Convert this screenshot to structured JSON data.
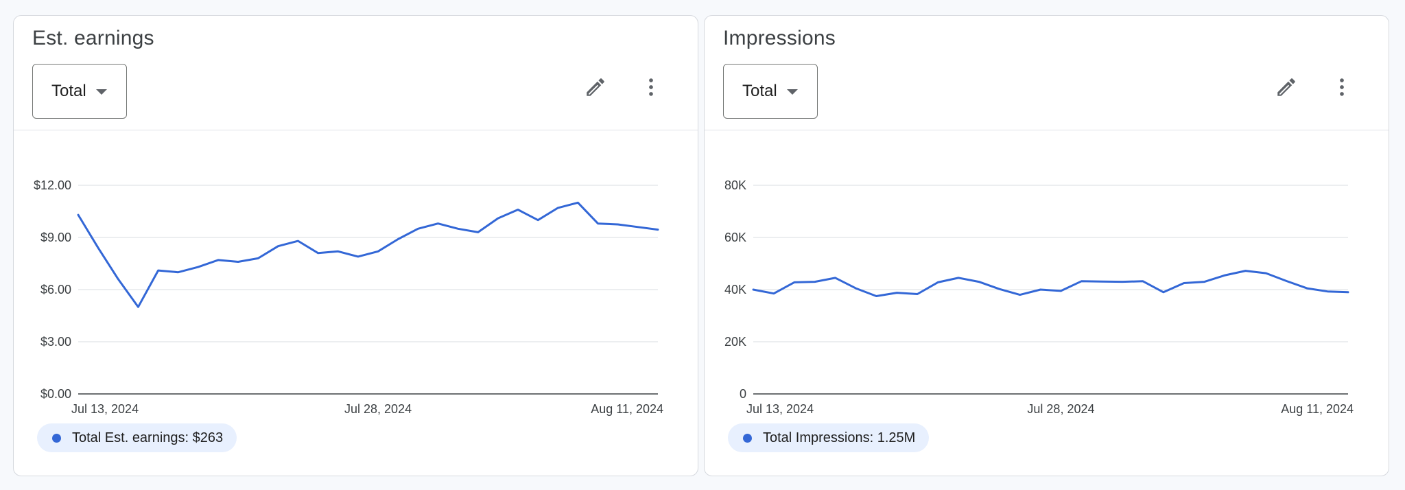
{
  "colors": {
    "series": "#3367d6",
    "grid": "#dadce0",
    "axis": "#3c4043"
  },
  "cards": [
    {
      "title": "Est. earnings",
      "dropdown_value": "Total",
      "edit_icon": "pencil-icon",
      "menu_icon": "more-vert-icon",
      "legend": {
        "label": "Total Est. earnings: $263"
      },
      "chart_data": {
        "type": "line",
        "title": "",
        "xlabel": "",
        "ylabel": "",
        "ylim": [
          0,
          12
        ],
        "yticks": [
          0,
          3,
          6,
          9,
          12
        ],
        "ytick_labels": [
          "$0.00",
          "$3.00",
          "$6.00",
          "$9.00",
          "$12.00"
        ],
        "x": [
          "Jul 13, 2024",
          "Jul 14, 2024",
          "Jul 15, 2024",
          "Jul 16, 2024",
          "Jul 17, 2024",
          "Jul 18, 2024",
          "Jul 19, 2024",
          "Jul 20, 2024",
          "Jul 21, 2024",
          "Jul 22, 2024",
          "Jul 23, 2024",
          "Jul 24, 2024",
          "Jul 25, 2024",
          "Jul 26, 2024",
          "Jul 27, 2024",
          "Jul 28, 2024",
          "Jul 29, 2024",
          "Jul 30, 2024",
          "Jul 31, 2024",
          "Aug 1, 2024",
          "Aug 2, 2024",
          "Aug 3, 2024",
          "Aug 4, 2024",
          "Aug 5, 2024",
          "Aug 6, 2024",
          "Aug 7, 2024",
          "Aug 8, 2024",
          "Aug 9, 2024",
          "Aug 10, 2024",
          "Aug 11, 2024"
        ],
        "xtick_labels": [
          {
            "index": 0,
            "label": "Jul 13, 2024"
          },
          {
            "index": 15,
            "label": "Jul 28, 2024"
          },
          {
            "index": 29,
            "label": "Aug 11, 2024"
          }
        ],
        "grid": true,
        "series": [
          {
            "values": [
              10.3,
              8.4,
              6.6,
              5.0,
              7.1,
              7.0,
              7.3,
              7.7,
              7.6,
              7.8,
              8.5,
              8.8,
              8.1,
              8.2,
              7.9,
              8.2,
              8.9,
              9.5,
              9.8,
              9.5,
              9.3,
              10.1,
              10.6,
              10.0,
              10.7,
              11.0,
              9.8,
              9.75,
              9.6,
              9.45
            ]
          }
        ]
      }
    },
    {
      "title": "Impressions",
      "dropdown_value": "Total",
      "edit_icon": "pencil-icon",
      "menu_icon": "more-vert-icon",
      "legend": {
        "label": "Total Impressions: 1.25M"
      },
      "chart_data": {
        "type": "line",
        "title": "",
        "xlabel": "",
        "ylabel": "",
        "ylim": [
          0,
          80000
        ],
        "yticks": [
          0,
          20000,
          40000,
          60000,
          80000
        ],
        "ytick_labels": [
          "0",
          "20K",
          "40K",
          "60K",
          "80K"
        ],
        "x": [
          "Jul 13, 2024",
          "Jul 14, 2024",
          "Jul 15, 2024",
          "Jul 16, 2024",
          "Jul 17, 2024",
          "Jul 18, 2024",
          "Jul 19, 2024",
          "Jul 20, 2024",
          "Jul 21, 2024",
          "Jul 22, 2024",
          "Jul 23, 2024",
          "Jul 24, 2024",
          "Jul 25, 2024",
          "Jul 26, 2024",
          "Jul 27, 2024",
          "Jul 28, 2024",
          "Jul 29, 2024",
          "Jul 30, 2024",
          "Jul 31, 2024",
          "Aug 1, 2024",
          "Aug 2, 2024",
          "Aug 3, 2024",
          "Aug 4, 2024",
          "Aug 5, 2024",
          "Aug 6, 2024",
          "Aug 7, 2024",
          "Aug 8, 2024",
          "Aug 9, 2024",
          "Aug 10, 2024",
          "Aug 11, 2024"
        ],
        "xtick_labels": [
          {
            "index": 0,
            "label": "Jul 13, 2024"
          },
          {
            "index": 15,
            "label": "Jul 28, 2024"
          },
          {
            "index": 29,
            "label": "Aug 11, 2024"
          }
        ],
        "grid": true,
        "series": [
          {
            "values": [
              40000,
              38500,
              42800,
              43000,
              44500,
              40500,
              37500,
              38800,
              38300,
              42800,
              44500,
              43000,
              40200,
              38000,
              40000,
              39500,
              43200,
              43100,
              43000,
              43200,
              39000,
              42500,
              43000,
              45500,
              47200,
              46300,
              43300,
              40500,
              39300,
              39000
            ]
          }
        ]
      }
    }
  ]
}
